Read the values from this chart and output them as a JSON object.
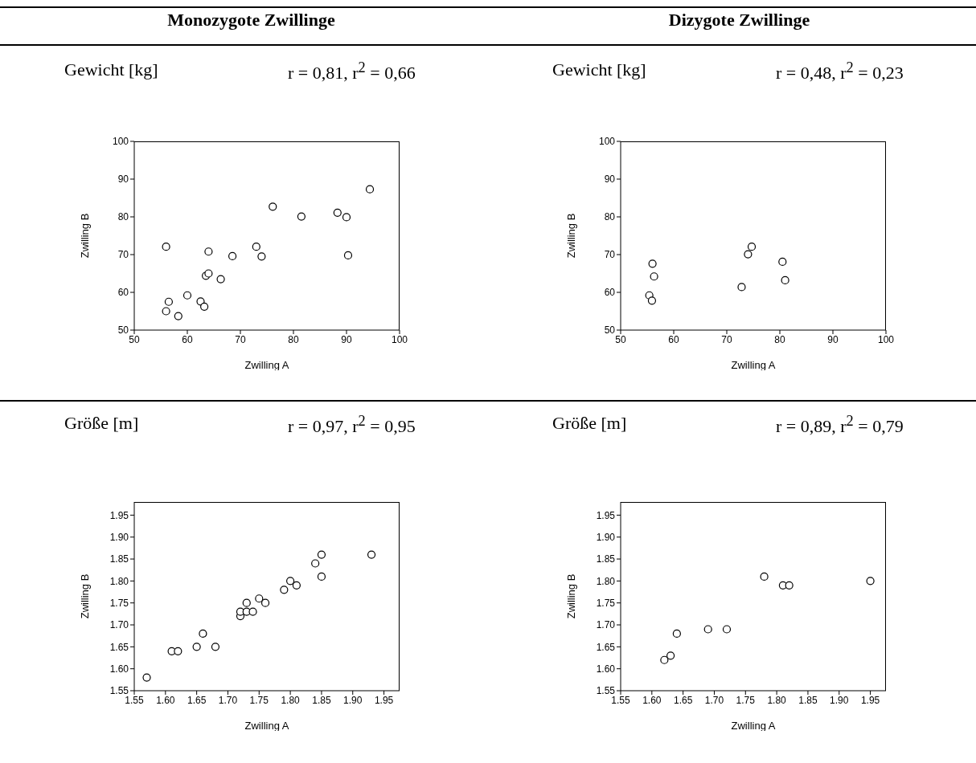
{
  "chart_data": [
    {
      "type": "scatter",
      "annotations": [
        "Monozygote Zwillinge"
      ],
      "title": "Gewicht [kg]",
      "subtitle": "r = 0,81, r$^{2}$ = 0,66",
      "xlabel": "Zwilling A",
      "ylabel": "Zwilling B",
      "marker": "circle",
      "color": "#000000",
      "x": [
        56,
        56,
        56.5,
        58.3,
        60,
        62.5,
        63.2,
        63.5,
        64,
        64,
        66.3,
        68.5,
        73,
        74,
        76.1,
        81.5,
        88.3,
        90,
        90.3,
        94.4
      ],
      "values": [
        72.1,
        55,
        57.5,
        53.7,
        59.2,
        57.6,
        56.2,
        64.4,
        65,
        70.8,
        63.5,
        69.6,
        72.1,
        69.5,
        82.7,
        80.1,
        81.1,
        79.9,
        69.8,
        87.3
      ],
      "xlim": [
        50,
        100
      ],
      "ylim": [
        50,
        100
      ],
      "xticks": [
        50,
        60,
        70,
        80,
        90,
        100
      ],
      "yticks": [
        50,
        60,
        70,
        80,
        90,
        100
      ]
    },
    {
      "type": "scatter",
      "annotations": [
        "Dizygote Zwillinge"
      ],
      "title": "Gewicht [kg]",
      "subtitle": "r = 0,48, r$^{2}$ = 0,23",
      "xlabel": "Zwilling A",
      "ylabel": "Zwilling B",
      "marker": "circle",
      "color": "#000000",
      "x": [
        55.4,
        55.9,
        56,
        56.3,
        72.8,
        74,
        74.7,
        80.5,
        81
      ],
      "values": [
        59.2,
        57.8,
        67.6,
        64.2,
        61.4,
        70.1,
        72.1,
        68.1,
        63.2
      ],
      "xlim": [
        50,
        100
      ],
      "ylim": [
        50,
        100
      ],
      "xticks": [
        50,
        60,
        70,
        80,
        90,
        100
      ],
      "yticks": [
        50,
        60,
        70,
        80,
        90,
        100
      ]
    },
    {
      "type": "scatter",
      "title": "Größe [m]",
      "subtitle": "r = 0,97, r$^{2}$ = 0,95",
      "xlabel": "Zwilling A",
      "ylabel": "Zwilling B",
      "marker": "circle",
      "color": "#000000",
      "x": [
        1.57,
        1.61,
        1.62,
        1.65,
        1.66,
        1.68,
        1.72,
        1.72,
        1.73,
        1.73,
        1.74,
        1.75,
        1.76,
        1.79,
        1.8,
        1.81,
        1.84,
        1.85,
        1.85,
        1.93
      ],
      "values": [
        1.58,
        1.64,
        1.64,
        1.65,
        1.68,
        1.65,
        1.72,
        1.73,
        1.73,
        1.75,
        1.73,
        1.76,
        1.75,
        1.78,
        1.8,
        1.79,
        1.84,
        1.86,
        1.81,
        1.86
      ],
      "xlim": [
        1.55,
        1.975
      ],
      "ylim": [
        1.55,
        1.98
      ],
      "xticks": [
        {
          "value": 1.55,
          "label": "1.55"
        },
        {
          "value": 1.6,
          "label": "1.60"
        },
        {
          "value": 1.65,
          "label": "1.65"
        },
        {
          "value": 1.7,
          "label": "1.70"
        },
        {
          "value": 1.75,
          "label": "1.75"
        },
        {
          "value": 1.8,
          "label": "1.80"
        },
        {
          "value": 1.85,
          "label": "1.85"
        },
        {
          "value": 1.9,
          "label": "1.90"
        },
        {
          "value": 1.95,
          "label": "1.95"
        }
      ],
      "yticks": [
        {
          "value": 1.55,
          "label": "1.55"
        },
        {
          "value": 1.6,
          "label": "1.60"
        },
        {
          "value": 1.65,
          "label": "1.65"
        },
        {
          "value": 1.7,
          "label": "1.70"
        },
        {
          "value": 1.75,
          "label": "1.75"
        },
        {
          "value": 1.8,
          "label": "1.80"
        },
        {
          "value": 1.85,
          "label": "1.85"
        },
        {
          "value": 1.9,
          "label": "1.90"
        },
        {
          "value": 1.95,
          "label": "1.95"
        }
      ]
    },
    {
      "type": "scatter",
      "title": "Größe [m]",
      "subtitle": "r = 0,89, r$^{2}$ = 0,79",
      "xlabel": "Zwilling A",
      "ylabel": "Zwilling B",
      "marker": "circle",
      "color": "#000000",
      "x": [
        1.62,
        1.63,
        1.64,
        1.69,
        1.72,
        1.78,
        1.81,
        1.82,
        1.95
      ],
      "values": [
        1.62,
        1.63,
        1.68,
        1.69,
        1.69,
        1.81,
        1.79,
        1.79,
        1.8
      ],
      "xlim": [
        1.55,
        1.975
      ],
      "ylim": [
        1.55,
        1.98
      ],
      "xticks": [
        {
          "value": 1.55,
          "label": "1.55"
        },
        {
          "value": 1.6,
          "label": "1.60"
        },
        {
          "value": 1.65,
          "label": "1.65"
        },
        {
          "value": 1.7,
          "label": "1.70"
        },
        {
          "value": 1.75,
          "label": "1.75"
        },
        {
          "value": 1.8,
          "label": "1.80"
        },
        {
          "value": 1.85,
          "label": "1.85"
        },
        {
          "value": 1.9,
          "label": "1.90"
        },
        {
          "value": 1.95,
          "label": "1.95"
        }
      ],
      "yticks": [
        {
          "value": 1.55,
          "label": "1.55"
        },
        {
          "value": 1.6,
          "label": "1.60"
        },
        {
          "value": 1.65,
          "label": "1.65"
        },
        {
          "value": 1.7,
          "label": "1.70"
        },
        {
          "value": 1.75,
          "label": "1.75"
        },
        {
          "value": 1.8,
          "label": "1.80"
        },
        {
          "value": 1.85,
          "label": "1.85"
        },
        {
          "value": 1.9,
          "label": "1.90"
        },
        {
          "value": 1.95,
          "label": "1.95"
        }
      ]
    }
  ]
}
